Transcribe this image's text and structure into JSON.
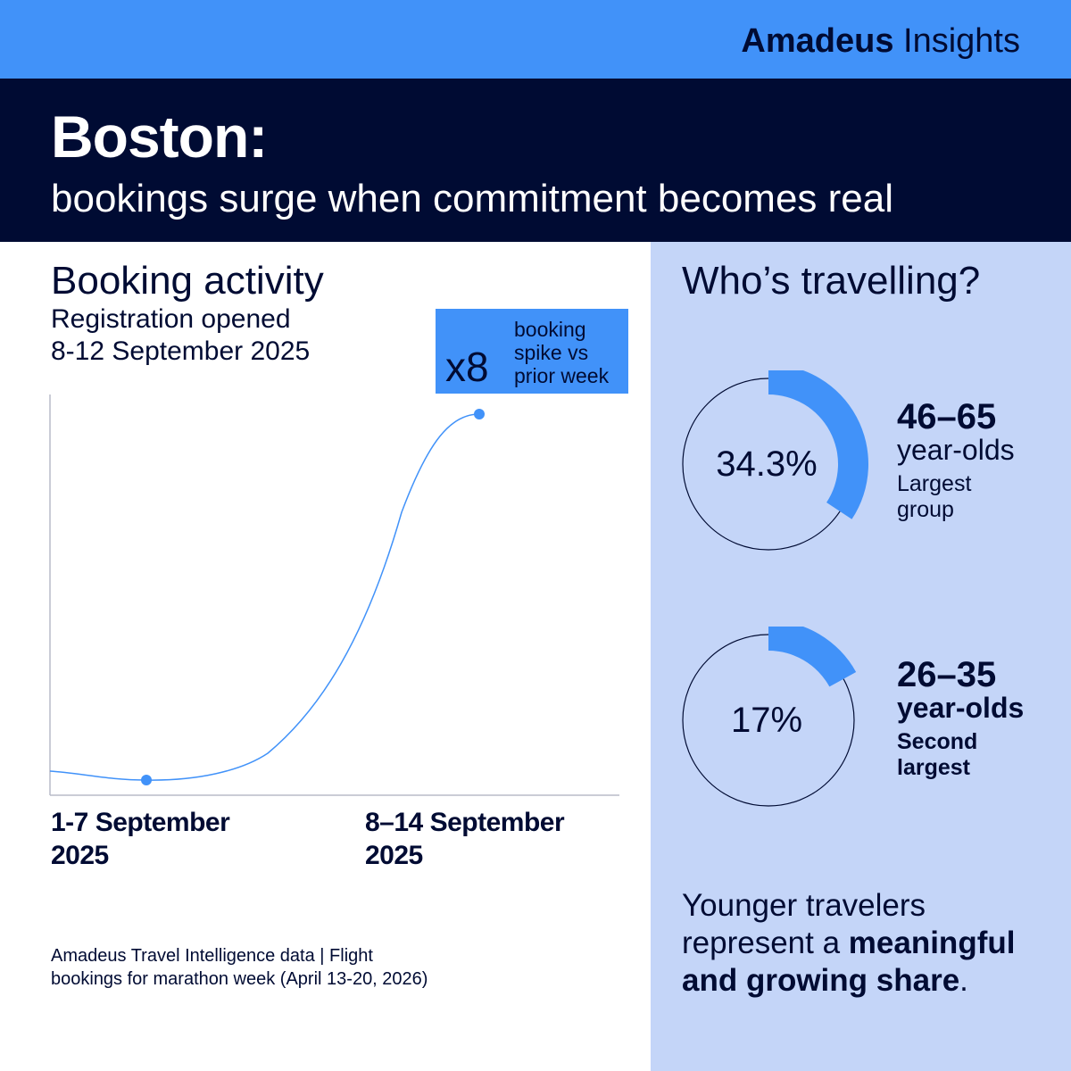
{
  "brand": {
    "name_bold": "Amadeus",
    "name_regular": " Insights"
  },
  "header": {
    "title": "Boston:",
    "subtitle": "bookings surge when commitment becomes real"
  },
  "booking_activity": {
    "title": "Booking activity",
    "subtitle_line1": "Registration opened",
    "subtitle_line2": "8-12 September 2025",
    "callout": {
      "multiplier": "x8",
      "line1": "booking",
      "line2": "spike vs",
      "line3": "prior week"
    },
    "x_labels": [
      {
        "line1": "1-7 September",
        "line2": "2025"
      },
      {
        "line1": "8–14 September",
        "line2": "2025"
      }
    ],
    "source_line1": "Amadeus Travel Intelligence data | Flight",
    "source_line2": "bookings for marathon week (April 13-20, 2026)"
  },
  "chart_data": {
    "type": "line",
    "categories": [
      "1-7 September 2025",
      "8–14 September 2025"
    ],
    "values": [
      1,
      8
    ],
    "annotation": "x8 booking spike vs prior week",
    "line_color": "#4192f9",
    "grid": false
  },
  "who": {
    "title": "Who’s travelling?",
    "groups": [
      {
        "percent_label": "34.3%",
        "share": 0.343,
        "age_range": "46–65",
        "unit": "year-olds",
        "note_line1": "Largest",
        "note_line2": "group"
      },
      {
        "percent_label": "17%",
        "share": 0.17,
        "age_range": "26–35",
        "unit": "year-olds",
        "note_line1": "Second",
        "note_line2": "largest"
      }
    ],
    "closing": {
      "line1": "Younger travelers",
      "line2_regular": "represent a ",
      "line2_bold": "meaningful",
      "line3_bold": "and growing share",
      "line3_end": "."
    }
  },
  "colors": {
    "accent_blue": "#4192f9",
    "navy": "#000b33",
    "panel_light": "#c4d5f8"
  }
}
